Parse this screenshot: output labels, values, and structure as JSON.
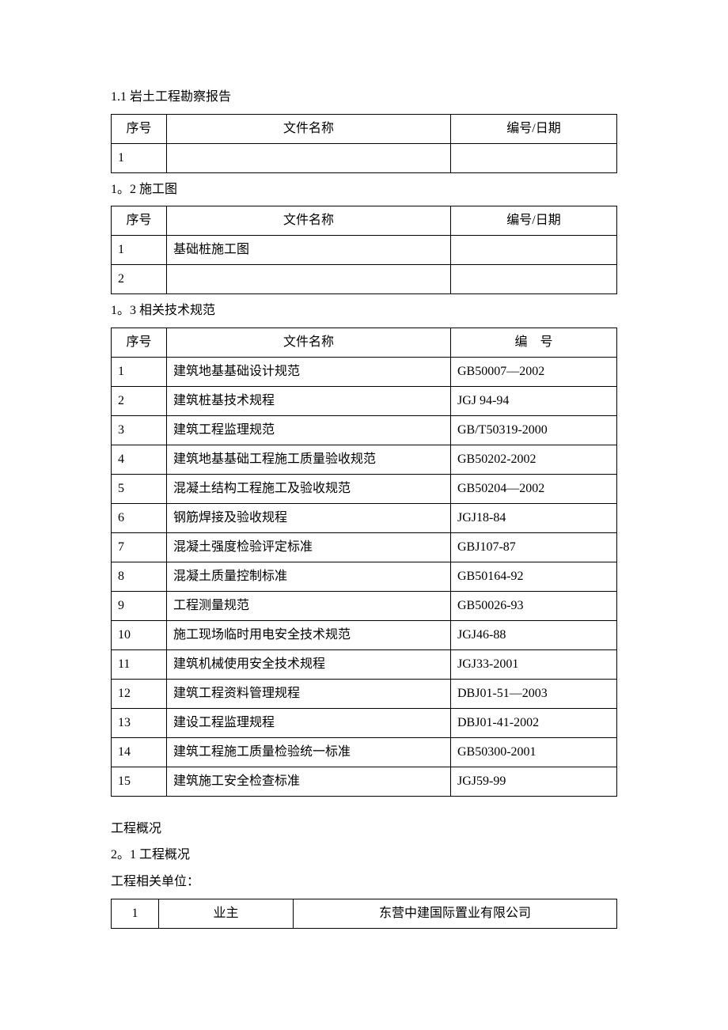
{
  "section1_1": {
    "title": "1.1 岩土工程勘察报告",
    "headers": {
      "seq": "序号",
      "name": "文件名称",
      "code": "编号/日期"
    },
    "rows": [
      {
        "seq": "1",
        "name": "",
        "code": ""
      }
    ]
  },
  "section1_2": {
    "title": "1。2 施工图",
    "headers": {
      "seq": "序号",
      "name": "文件名称",
      "code": "编号/日期"
    },
    "rows": [
      {
        "seq": "1",
        "name": "基础桩施工图",
        "code": ""
      },
      {
        "seq": "2",
        "name": "",
        "code": ""
      }
    ]
  },
  "section1_3": {
    "title": "1。3 相关技术规范",
    "headers": {
      "seq": "序号",
      "name": "文件名称",
      "code": "编　号"
    },
    "rows": [
      {
        "seq": "1",
        "name": "建筑地基基础设计规范",
        "code": "GB50007—2002"
      },
      {
        "seq": "2",
        "name": "建筑桩基技术规程",
        "code": "JGJ 94-94"
      },
      {
        "seq": "3",
        "name": "建筑工程监理规范",
        "code": "GB/T50319-2000"
      },
      {
        "seq": "4",
        "name": "建筑地基基础工程施工质量验收规范",
        "code": "GB50202-2002"
      },
      {
        "seq": "5",
        "name": "混凝土结构工程施工及验收规范",
        "code": "GB50204—2002"
      },
      {
        "seq": "6",
        "name": "钢筋焊接及验收规程",
        "code": "JGJ18-84"
      },
      {
        "seq": "7",
        "name": "混凝土强度检验评定标准",
        "code": "GBJ107-87"
      },
      {
        "seq": "8",
        "name": "混凝土质量控制标准",
        "code": "GB50164-92"
      },
      {
        "seq": "9",
        "name": "工程测量规范",
        "code": "GB50026-93"
      },
      {
        "seq": "10",
        "name": "施工现场临时用电安全技术规范",
        "code": "JGJ46-88"
      },
      {
        "seq": "11",
        "name": "建筑机械使用安全技术规程",
        "code": "JGJ33-2001"
      },
      {
        "seq": "12",
        "name": "建筑工程资料管理规程",
        "code": "DBJ01-51—2003"
      },
      {
        "seq": "13",
        "name": "建设工程监理规程",
        "code": "DBJ01-41-2002"
      },
      {
        "seq": "14",
        "name": "建筑工程施工质量检验统一标准",
        "code": "GB50300-2001"
      },
      {
        "seq": "15",
        "name": "建筑施工安全检查标准",
        "code": "JGJ59-99"
      }
    ]
  },
  "section2": {
    "heading": "工程概况",
    "sub": "2。1 工程概况",
    "related": "工程相关单位：",
    "rows": [
      {
        "seq": "1",
        "role": "业主",
        "org": "东营中建国际置业有限公司"
      }
    ]
  }
}
